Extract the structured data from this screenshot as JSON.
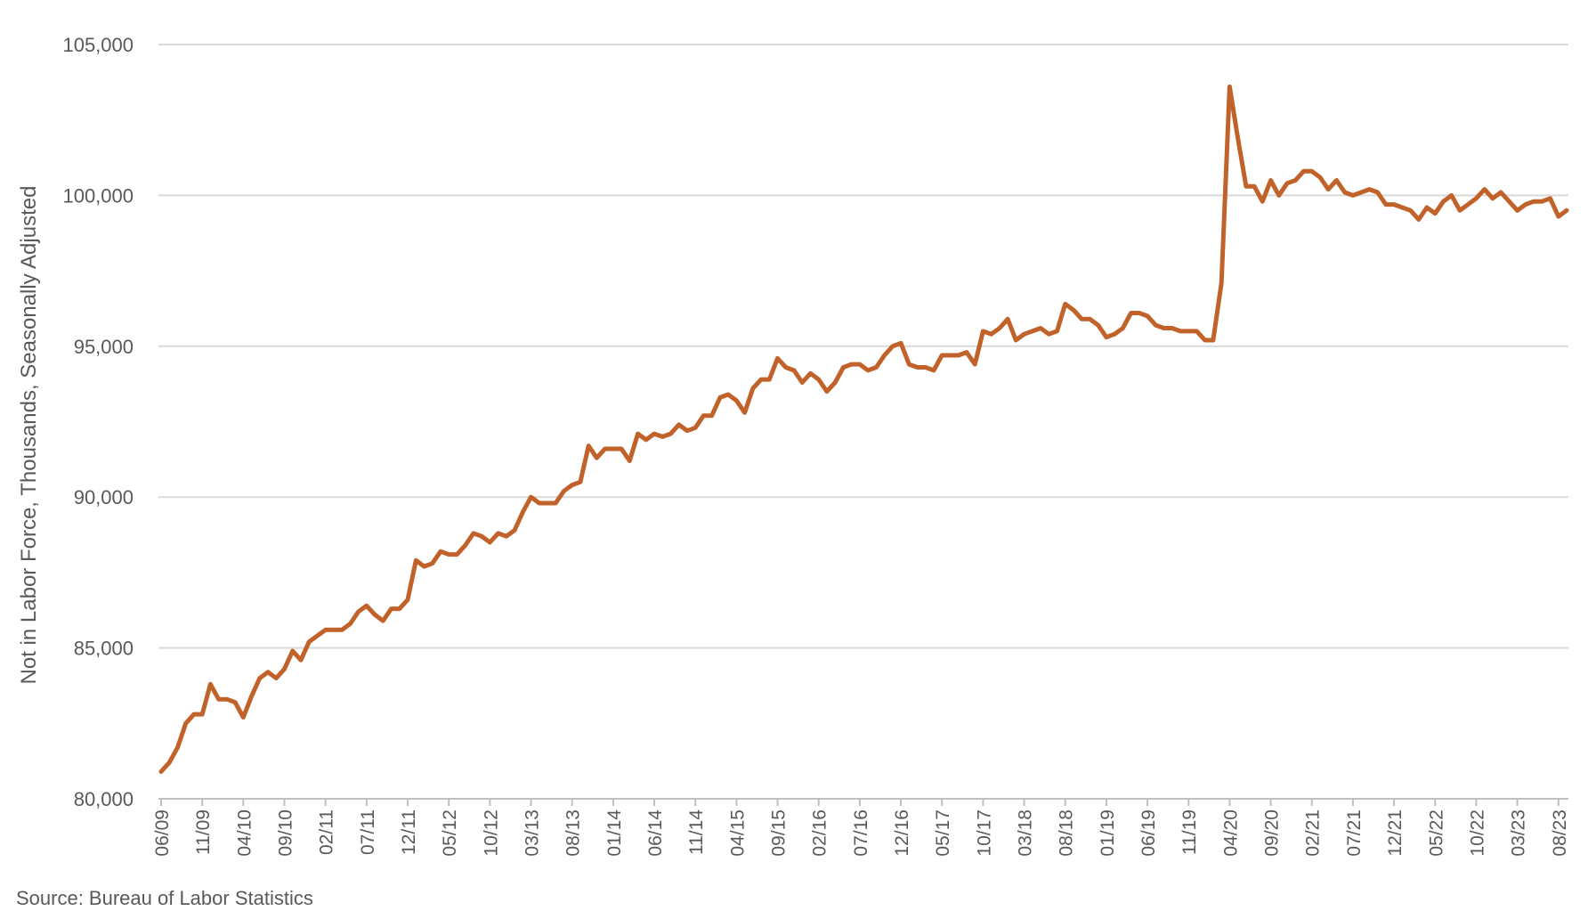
{
  "chart_data": {
    "type": "line",
    "title": "",
    "xlabel": "",
    "ylabel": "Not in Labor Force, Thousands, Seasonally Adjusted",
    "ylim": [
      80000,
      105000
    ],
    "yticks": [
      "80,000",
      "85,000",
      "90,000",
      "95,000",
      "100,000",
      "105,000"
    ],
    "ytick_values": [
      80000,
      85000,
      90000,
      95000,
      100000,
      105000
    ],
    "grid": true,
    "legend": "none",
    "line_color": "#C0622A",
    "x_tick_labels": [
      "06/09",
      "11/09",
      "04/10",
      "09/10",
      "02/11",
      "07/11",
      "12/11",
      "05/12",
      "10/12",
      "03/13",
      "08/13",
      "01/14",
      "06/14",
      "11/14",
      "04/15",
      "09/15",
      "02/16",
      "07/16",
      "12/16",
      "05/17",
      "10/17",
      "03/18",
      "08/18",
      "01/19",
      "06/19",
      "11/19",
      "04/20",
      "09/20",
      "02/21",
      "07/21",
      "12/21",
      "05/22",
      "10/22",
      "03/23",
      "08/23"
    ],
    "x_start": "06/09",
    "x_end": "09/23",
    "series": [
      {
        "values": [
          80900,
          81200,
          81700,
          82500,
          82800,
          82800,
          83800,
          83300,
          83300,
          83200,
          82700,
          83400,
          84000,
          84200,
          84000,
          84300,
          84900,
          84600,
          85200,
          85400,
          85600,
          85600,
          85600,
          85800,
          86200,
          86400,
          86100,
          85900,
          86300,
          86300,
          86600,
          87900,
          87700,
          87800,
          88200,
          88100,
          88100,
          88400,
          88800,
          88700,
          88500,
          88800,
          88700,
          88900,
          89500,
          90000,
          89800,
          89800,
          89800,
          90200,
          90400,
          90500,
          91700,
          91300,
          91600,
          91600,
          91600,
          91200,
          92100,
          91900,
          92100,
          92000,
          92100,
          92400,
          92200,
          92300,
          92700,
          92700,
          93300,
          93400,
          93200,
          92800,
          93600,
          93900,
          93900,
          94600,
          94300,
          94200,
          93800,
          94100,
          93900,
          93500,
          93800,
          94300,
          94400,
          94400,
          94200,
          94300,
          94700,
          95000,
          95100,
          94400,
          94300,
          94300,
          94200,
          94700,
          94700,
          94700,
          94800,
          94400,
          95500,
          95400,
          95600,
          95900,
          95200,
          95400,
          95500,
          95600,
          95400,
          95500,
          96400,
          96200,
          95900,
          95900,
          95700,
          95300,
          95400,
          95600,
          96100,
          96100,
          96000,
          95700,
          95600,
          95600,
          95500,
          95500,
          95500,
          95200,
          95200,
          97100,
          103600,
          101900,
          100300,
          100300,
          99800,
          100500,
          100000,
          100400,
          100500,
          100800,
          100800,
          100600,
          100200,
          100500,
          100100,
          100000,
          100100,
          100200,
          100100,
          99700,
          99700,
          99600,
          99500,
          99200,
          99600,
          99400,
          99800,
          100000,
          99500,
          99700,
          99900,
          100200,
          99900,
          100100,
          99800,
          99500,
          99700,
          99800,
          99800,
          99900,
          99300,
          99500
        ]
      }
    ]
  },
  "source": "Source: Bureau of Labor Statistics"
}
